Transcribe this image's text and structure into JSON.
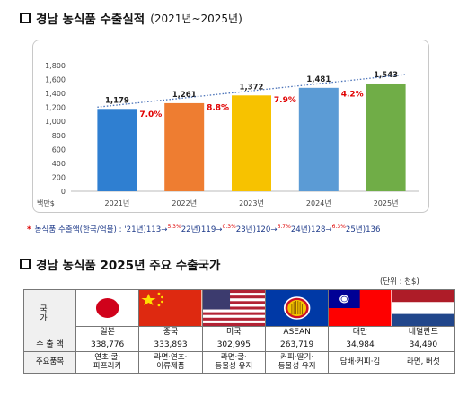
{
  "title1": {
    "main": "경남 농식품 수출실적",
    "sub": "(2021년~2025년)"
  },
  "chart_data": {
    "type": "bar",
    "categories": [
      "2021년",
      "2022년",
      "2023년",
      "2024년",
      "2025년"
    ],
    "values": [
      1179,
      1261,
      1372,
      1481,
      1543
    ],
    "value_labels": [
      "1,179",
      "1,261",
      "1,372",
      "1,481",
      "1,543"
    ],
    "growth_labels": [
      "7.0%",
      "8.8%",
      "7.9%",
      "4.2%"
    ],
    "ylabel": "백만$",
    "yticks": [
      "0",
      "200",
      "400",
      "600",
      "800",
      "1,000",
      "1,200",
      "1,400",
      "1,600",
      "1,800"
    ],
    "ylim": [
      0,
      1800
    ],
    "colors": [
      "#2f7fd1",
      "#ee7d31",
      "#f7c200",
      "#5b9bd5",
      "#70ad47"
    ],
    "trendline": "dotted"
  },
  "note": {
    "lead": "농식품 수출액(한국/억불) : ",
    "parts": [
      "'21년)113→",
      "5.3%",
      "22년)119→",
      "0.3%",
      "23년)120→",
      "6.7%",
      "24년)128→",
      "6.3%",
      "25년)136"
    ]
  },
  "title2": {
    "main": "경남 농식품 2025년 주요 수출국가"
  },
  "unit": "(단위 : 천$)",
  "table": {
    "row_label_country": "국   가",
    "row_label_amount": "수 출 액",
    "row_label_products": "주요품목",
    "countries": [
      {
        "name": "일본",
        "amount": "338,776",
        "products": [
          "연초·굴·",
          "파프리카"
        ],
        "flag": "japan-flag"
      },
      {
        "name": "중국",
        "amount": "333,893",
        "products": [
          "라면·연초·",
          "어류제품"
        ],
        "flag": "china-flag"
      },
      {
        "name": "미국",
        "amount": "302,995",
        "products": [
          "라면·굴·",
          "동물성 유지"
        ],
        "flag": "usa-flag"
      },
      {
        "name": "ASEAN",
        "amount": "263,719",
        "products": [
          "커피·딸기·",
          "동물성 유지"
        ],
        "flag": "asean-flag"
      },
      {
        "name": "대만",
        "amount": "34,984",
        "products": [
          "담배·커피·김",
          ""
        ],
        "flag": "taiwan-flag"
      },
      {
        "name": "네덜란드",
        "amount": "34,490",
        "products": [
          "라면, 버섯",
          ""
        ],
        "flag": "netherlands-flag"
      }
    ]
  }
}
